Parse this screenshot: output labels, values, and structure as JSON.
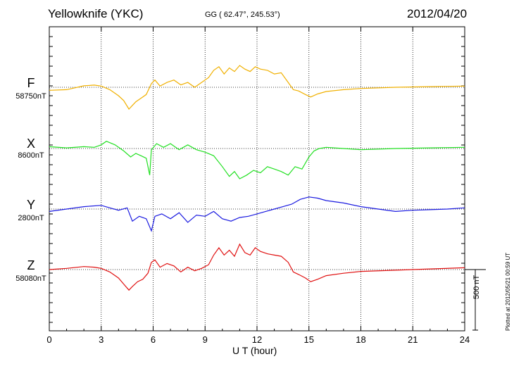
{
  "chart_data": {
    "type": "line",
    "station": "Yellowknife (YKC)",
    "coords": "GG ( 62.47°, 245.53°)",
    "date": "2012/04/20",
    "xlabel": "U T (hour)",
    "x_range": [
      0,
      24
    ],
    "x_ticks": [
      "0",
      "3",
      "6",
      "9",
      "12",
      "15",
      "18",
      "21",
      "24"
    ],
    "scale_label": "500 nT",
    "scale_nT": 500,
    "plotted_note": "Plotted at 2012/05/21 00:59 UT",
    "series": [
      {
        "name": "F",
        "baseline_label": "58750nT",
        "color": "#f0b000",
        "x": [
          0,
          1,
          2,
          2.6,
          3,
          3.5,
          4,
          4.3,
          4.6,
          4.8,
          5,
          5.3,
          5.6,
          5.9,
          6.1,
          6.4,
          6.8,
          7.2,
          7.6,
          8,
          8.4,
          8.8,
          9.2,
          9.5,
          9.8,
          10.1,
          10.4,
          10.7,
          11,
          11.3,
          11.6,
          11.9,
          12.2,
          12.6,
          13,
          13.4,
          13.8,
          14.1,
          14.4,
          14.8,
          15.1,
          15.5,
          16,
          17,
          18,
          20,
          22,
          24
        ],
        "values": [
          -25,
          -20,
          12,
          18,
          10,
          -20,
          -70,
          -110,
          -180,
          -150,
          -120,
          -90,
          -60,
          30,
          60,
          10,
          40,
          60,
          20,
          40,
          0,
          40,
          80,
          140,
          170,
          110,
          160,
          130,
          180,
          150,
          130,
          170,
          150,
          140,
          110,
          120,
          40,
          -20,
          -30,
          -60,
          -80,
          -55,
          -35,
          -20,
          -10,
          0,
          5,
          10
        ]
      },
      {
        "name": "X",
        "baseline_label": "8600nT",
        "color": "#22e022",
        "x": [
          0,
          1,
          2,
          2.6,
          3,
          3.3,
          3.8,
          4.3,
          4.7,
          5,
          5.3,
          5.6,
          5.8,
          5.9,
          6.2,
          6.6,
          7,
          7.5,
          8,
          8.5,
          9,
          9.5,
          10,
          10.4,
          10.7,
          11,
          11.4,
          11.8,
          12.2,
          12.6,
          13,
          13.4,
          13.8,
          14.2,
          14.6,
          15,
          15.3,
          15.6,
          16,
          17,
          18,
          20,
          22,
          24
        ],
        "values": [
          15,
          5,
          15,
          10,
          30,
          60,
          30,
          -20,
          -70,
          -40,
          -60,
          -80,
          -220,
          -10,
          40,
          10,
          40,
          -10,
          30,
          -10,
          -30,
          -60,
          -150,
          -230,
          -190,
          -250,
          -220,
          -180,
          -200,
          -150,
          -170,
          -190,
          -220,
          -150,
          -170,
          -70,
          -20,
          0,
          10,
          0,
          -10,
          0,
          5,
          10
        ]
      },
      {
        "name": "Y",
        "baseline_label": "2800nT",
        "color": "#1a1ae0",
        "x": [
          0,
          1,
          2,
          3,
          3.5,
          4,
          4.5,
          4.8,
          5.2,
          5.6,
          5.9,
          6.1,
          6.5,
          7,
          7.5,
          8,
          8.5,
          9,
          9.5,
          10,
          10.5,
          11,
          11.5,
          12,
          12.5,
          13,
          13.5,
          14,
          14.5,
          15,
          15.5,
          16,
          17,
          18,
          19,
          20,
          21,
          22,
          23,
          24
        ],
        "values": [
          -20,
          0,
          20,
          30,
          10,
          -10,
          10,
          -100,
          -60,
          -80,
          -180,
          -60,
          -40,
          -80,
          -30,
          -110,
          -50,
          -60,
          -20,
          -80,
          -100,
          -70,
          -60,
          -40,
          -20,
          0,
          20,
          40,
          80,
          100,
          90,
          70,
          50,
          20,
          0,
          -20,
          -10,
          -5,
          0,
          10
        ]
      },
      {
        "name": "Z",
        "baseline_label": "58080nT",
        "color": "#e01010",
        "x": [
          0,
          1,
          2,
          2.6,
          3,
          3.5,
          4,
          4.3,
          4.6,
          4.8,
          5.1,
          5.4,
          5.7,
          5.9,
          6.1,
          6.4,
          6.8,
          7.2,
          7.6,
          8,
          8.4,
          8.8,
          9.2,
          9.5,
          9.8,
          10.1,
          10.4,
          10.7,
          11,
          11.3,
          11.6,
          11.9,
          12.2,
          12.6,
          13,
          13.4,
          13.8,
          14.1,
          14.4,
          14.8,
          15.1,
          15.5,
          16,
          17,
          18,
          20,
          22,
          24
        ],
        "values": [
          0,
          10,
          25,
          20,
          10,
          -20,
          -70,
          -120,
          -170,
          -140,
          -100,
          -80,
          -30,
          60,
          80,
          20,
          50,
          30,
          -20,
          20,
          -10,
          10,
          40,
          120,
          180,
          120,
          160,
          110,
          210,
          140,
          120,
          180,
          150,
          130,
          120,
          110,
          60,
          -20,
          -40,
          -70,
          -100,
          -80,
          -50,
          -30,
          -15,
          -5,
          5,
          15
        ]
      }
    ]
  }
}
